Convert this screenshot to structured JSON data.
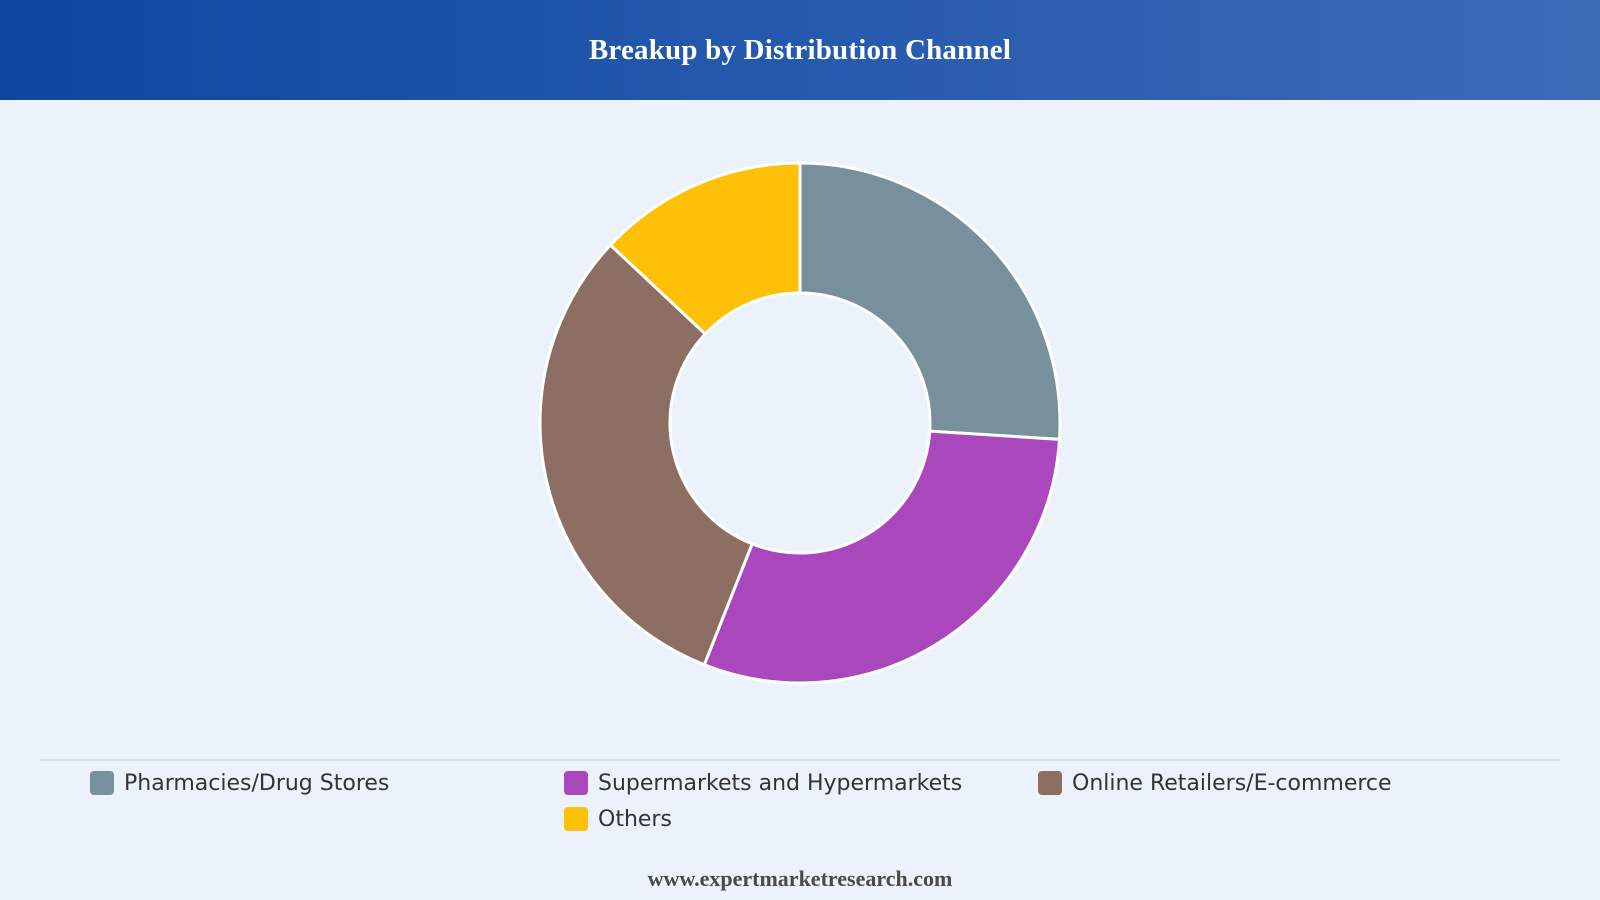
{
  "header": {
    "title": "Breakup by Distribution Channel"
  },
  "chart_data": {
    "type": "pie",
    "variant": "donut",
    "title": "Breakup by Distribution Channel",
    "categories": [
      "Pharmacies/Drug Stores",
      "Supermarkets and Hypermarkets",
      "Online Retailers/E-commerce",
      "Others"
    ],
    "values": [
      26,
      30,
      31,
      13
    ],
    "unit": "%",
    "colors": [
      "#78909c",
      "#ab47bc",
      "#8d6e63",
      "#ffc107"
    ],
    "legend": "bottom",
    "start": "top, clockwise"
  },
  "footer": {
    "text": "www.expertmarketresearch.com"
  }
}
